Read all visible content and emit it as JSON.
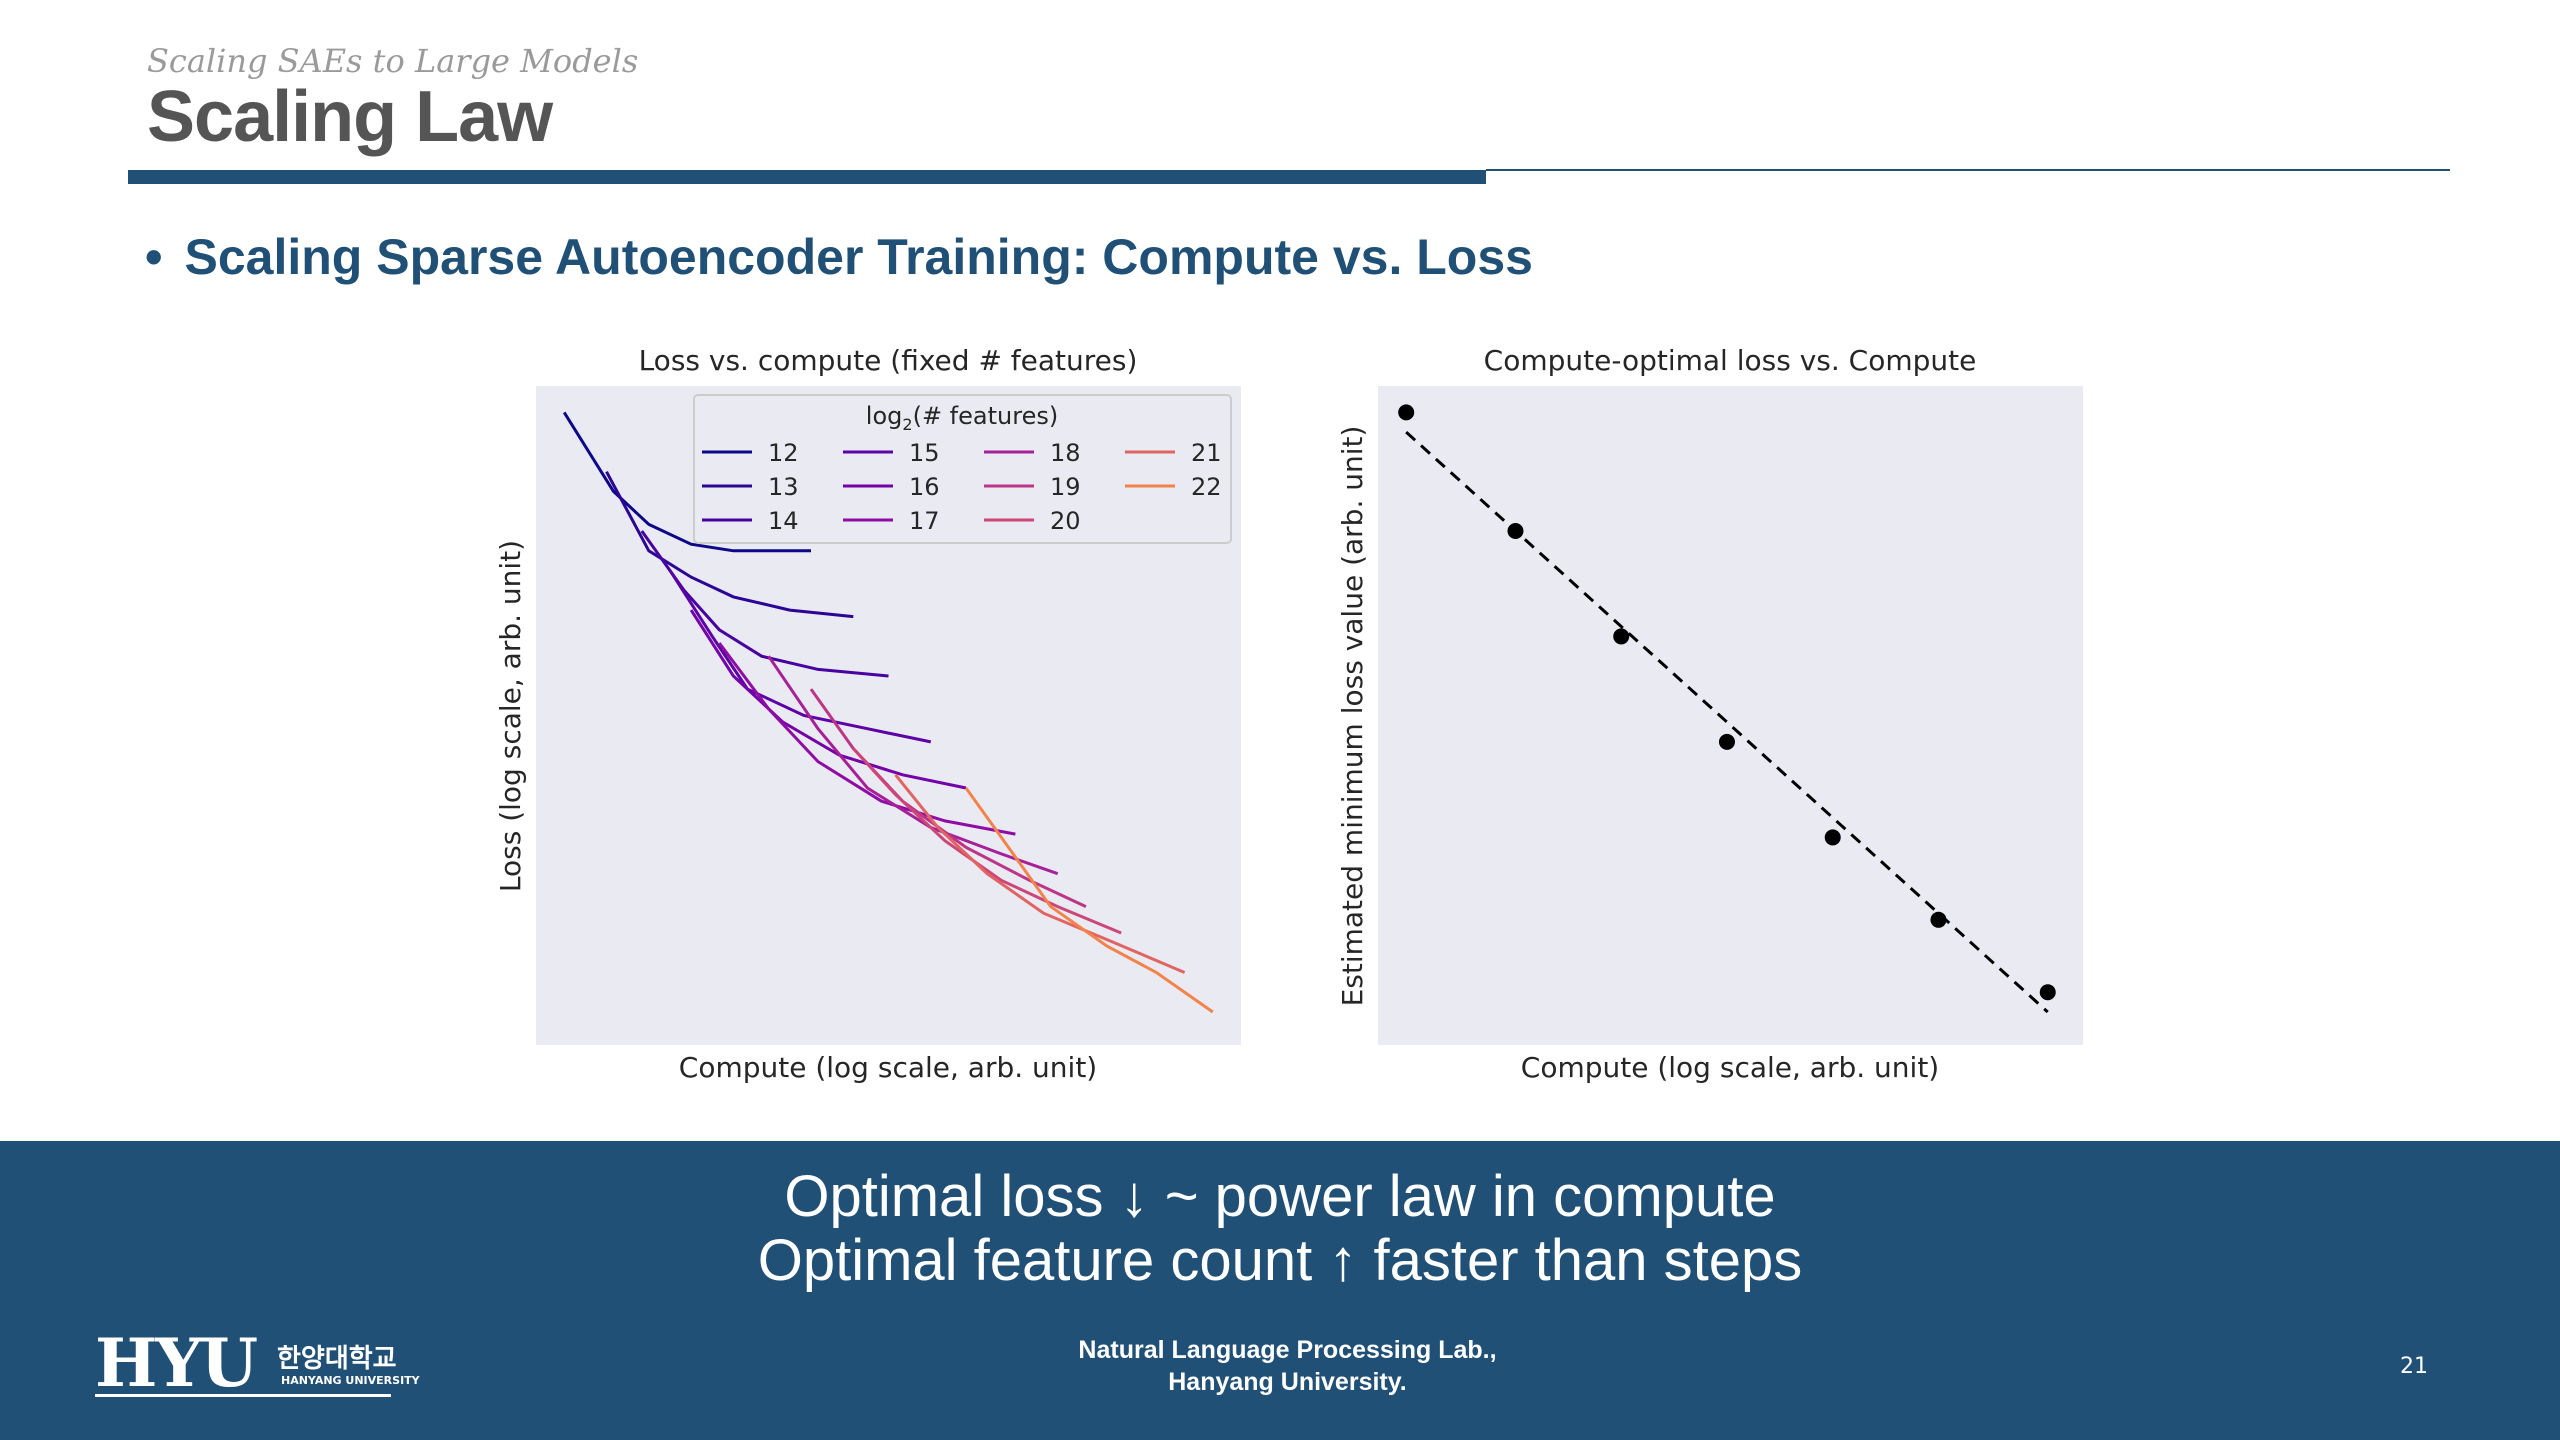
{
  "slide": {
    "kicker": "Scaling SAEs to Large Models",
    "title": "Scaling Law",
    "bullet": "Scaling Sparse Autoencoder Training: Compute vs. Loss",
    "tagline_line1": "Optimal loss ↓ ~ power law in compute",
    "tagline_line2": "Optimal feature count ↑ faster than steps",
    "lab_line1": "Natural Language Processing Lab.,",
    "lab_line2": "Hanyang University.",
    "page_number": "21",
    "logo_text": "HYU",
    "logo_korean": "한양대학교",
    "logo_english": "HANYANG UNIVERSITY"
  },
  "colors": {
    "brand_blue": "#215076",
    "plot_bg": "#eaeaf2",
    "dashed": "#000000"
  },
  "chart_data": [
    {
      "type": "line",
      "title": "Loss vs. compute (fixed # features)",
      "xlabel": "Compute (log scale, arb. unit)",
      "ylabel": "Loss (log scale, arb. unit)",
      "xscale": "log",
      "yscale": "log",
      "ticks_shown": false,
      "legend": {
        "title": "log₂(# features)",
        "position": "top-right",
        "columns": 4
      },
      "xlim": [
        0,
        10
      ],
      "ylim": [
        0,
        10
      ],
      "series": [
        {
          "name": "12",
          "color": "#0d0887",
          "points": [
            [
              0.4,
              9.6
            ],
            [
              1.1,
              8.4
            ],
            [
              1.6,
              7.9
            ],
            [
              2.2,
              7.6
            ],
            [
              2.8,
              7.5
            ],
            [
              3.9,
              7.5
            ]
          ]
        },
        {
          "name": "13",
          "color": "#2c0594",
          "points": [
            [
              1.0,
              8.7
            ],
            [
              1.6,
              7.5
            ],
            [
              2.2,
              7.1
            ],
            [
              2.8,
              6.8
            ],
            [
              3.6,
              6.6
            ],
            [
              4.5,
              6.5
            ]
          ]
        },
        {
          "name": "14",
          "color": "#46039f",
          "points": [
            [
              1.5,
              7.8
            ],
            [
              2.1,
              6.9
            ],
            [
              2.6,
              6.3
            ],
            [
              3.2,
              5.9
            ],
            [
              4.0,
              5.7
            ],
            [
              5.0,
              5.6
            ]
          ]
        },
        {
          "name": "15",
          "color": "#5b01a5",
          "points": [
            [
              1.9,
              7.2
            ],
            [
              2.5,
              6.2
            ],
            [
              3.0,
              5.4
            ],
            [
              3.8,
              5.0
            ],
            [
              4.7,
              4.8
            ],
            [
              5.6,
              4.6
            ]
          ]
        },
        {
          "name": "16",
          "color": "#7401a8",
          "points": [
            [
              2.2,
              6.6
            ],
            [
              2.8,
              5.6
            ],
            [
              3.5,
              4.9
            ],
            [
              4.3,
              4.4
            ],
            [
              5.2,
              4.1
            ],
            [
              6.1,
              3.9
            ]
          ]
        },
        {
          "name": "17",
          "color": "#8f0da4",
          "points": [
            [
              2.6,
              6.1
            ],
            [
              3.3,
              5.1
            ],
            [
              4.0,
              4.3
            ],
            [
              4.9,
              3.7
            ],
            [
              5.8,
              3.4
            ],
            [
              6.8,
              3.2
            ]
          ]
        },
        {
          "name": "18",
          "color": "#a62098",
          "points": [
            [
              3.3,
              5.9
            ],
            [
              4.0,
              4.8
            ],
            [
              4.7,
              3.9
            ],
            [
              5.6,
              3.3
            ],
            [
              6.6,
              2.9
            ],
            [
              7.4,
              2.6
            ]
          ]
        },
        {
          "name": "19",
          "color": "#bc3587",
          "points": [
            [
              3.9,
              5.4
            ],
            [
              4.5,
              4.5
            ],
            [
              5.2,
              3.7
            ],
            [
              6.1,
              3.0
            ],
            [
              7.0,
              2.5
            ],
            [
              7.8,
              2.1
            ]
          ]
        },
        {
          "name": "20",
          "color": "#cc4778",
          "points": [
            [
              4.5,
              4.5
            ],
            [
              5.1,
              3.8
            ],
            [
              5.8,
              3.1
            ],
            [
              6.6,
              2.5
            ],
            [
              7.4,
              2.1
            ],
            [
              8.3,
              1.7
            ]
          ]
        },
        {
          "name": "21",
          "color": "#e16462",
          "points": [
            [
              5.1,
              4.1
            ],
            [
              5.7,
              3.3
            ],
            [
              6.4,
              2.6
            ],
            [
              7.2,
              2.0
            ],
            [
              8.1,
              1.6
            ],
            [
              9.2,
              1.1
            ]
          ]
        },
        {
          "name": "22",
          "color": "#f2844b",
          "points": [
            [
              6.1,
              3.9
            ],
            [
              6.7,
              3.0
            ],
            [
              7.3,
              2.1
            ],
            [
              8.1,
              1.5
            ],
            [
              8.8,
              1.1
            ],
            [
              9.6,
              0.5
            ]
          ]
        }
      ]
    },
    {
      "type": "scatter",
      "title": "Compute-optimal loss vs. Compute",
      "xlabel": "Compute (log scale, arb. unit)",
      "ylabel": "Estimated minimum loss value (arb. unit)",
      "xscale": "log",
      "ticks_shown": false,
      "xlim": [
        0,
        10
      ],
      "ylim": [
        0,
        10
      ],
      "points": [
        [
          0.4,
          9.6
        ],
        [
          1.95,
          7.8
        ],
        [
          3.45,
          6.2
        ],
        [
          4.95,
          4.6
        ],
        [
          6.45,
          3.15
        ],
        [
          7.95,
          1.9
        ],
        [
          9.5,
          0.8
        ]
      ],
      "fit_line": {
        "style": "dashed",
        "points": [
          [
            0.4,
            9.3
          ],
          [
            9.5,
            0.5
          ]
        ]
      }
    }
  ]
}
